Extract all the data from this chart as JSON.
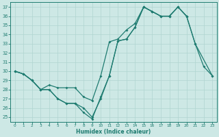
{
  "xlabel": "Humidex (Indice chaleur)",
  "bg_color": "#cde8e5",
  "line_color": "#1e7b70",
  "grid_color": "#b0d4d0",
  "xlim": [
    -0.5,
    23.5
  ],
  "ylim": [
    24.5,
    37.5
  ],
  "xticks": [
    0,
    1,
    2,
    3,
    4,
    5,
    6,
    7,
    8,
    9,
    10,
    11,
    12,
    13,
    14,
    15,
    16,
    17,
    18,
    19,
    20,
    21,
    22,
    23
  ],
  "yticks": [
    25,
    26,
    27,
    28,
    29,
    30,
    31,
    32,
    33,
    34,
    35,
    36,
    37
  ],
  "line1_x": [
    0,
    1,
    2,
    3,
    4,
    5,
    6,
    7,
    8,
    9,
    10,
    11,
    12,
    13,
    14,
    15,
    16,
    17,
    18,
    19,
    20,
    21,
    23
  ],
  "line1_y": [
    30,
    29.7,
    29,
    28,
    28.5,
    28.2,
    28.2,
    28.2,
    27.2,
    26.8,
    29.5,
    33.2,
    33.5,
    34.5,
    35.2,
    37,
    36.5,
    36,
    36,
    37,
    36,
    33,
    29.5
  ],
  "line2_x": [
    0,
    1,
    2,
    3,
    4,
    5,
    6,
    7,
    8,
    9,
    10,
    11,
    12,
    13,
    14,
    15,
    16,
    17,
    18,
    19,
    20,
    21,
    22,
    23
  ],
  "line2_y": [
    30,
    29.7,
    29,
    28,
    28,
    27,
    26.5,
    26.5,
    25.5,
    24.8,
    27.2,
    29.5,
    33.3,
    33.5,
    34.8,
    37,
    36.5,
    36,
    36,
    37,
    36,
    33,
    30.5,
    29.5
  ],
  "line3_x": [
    0,
    1,
    2,
    3,
    4,
    5,
    6,
    7,
    8,
    9,
    10,
    11,
    12,
    13,
    14,
    15,
    16,
    17,
    18,
    19,
    20
  ],
  "line3_y": [
    30,
    29.7,
    29,
    28,
    28,
    27,
    26.5,
    26.5,
    26,
    25,
    27,
    29.5,
    33.3,
    33.5,
    34.8,
    37,
    36.5,
    36,
    36,
    37,
    36
  ]
}
